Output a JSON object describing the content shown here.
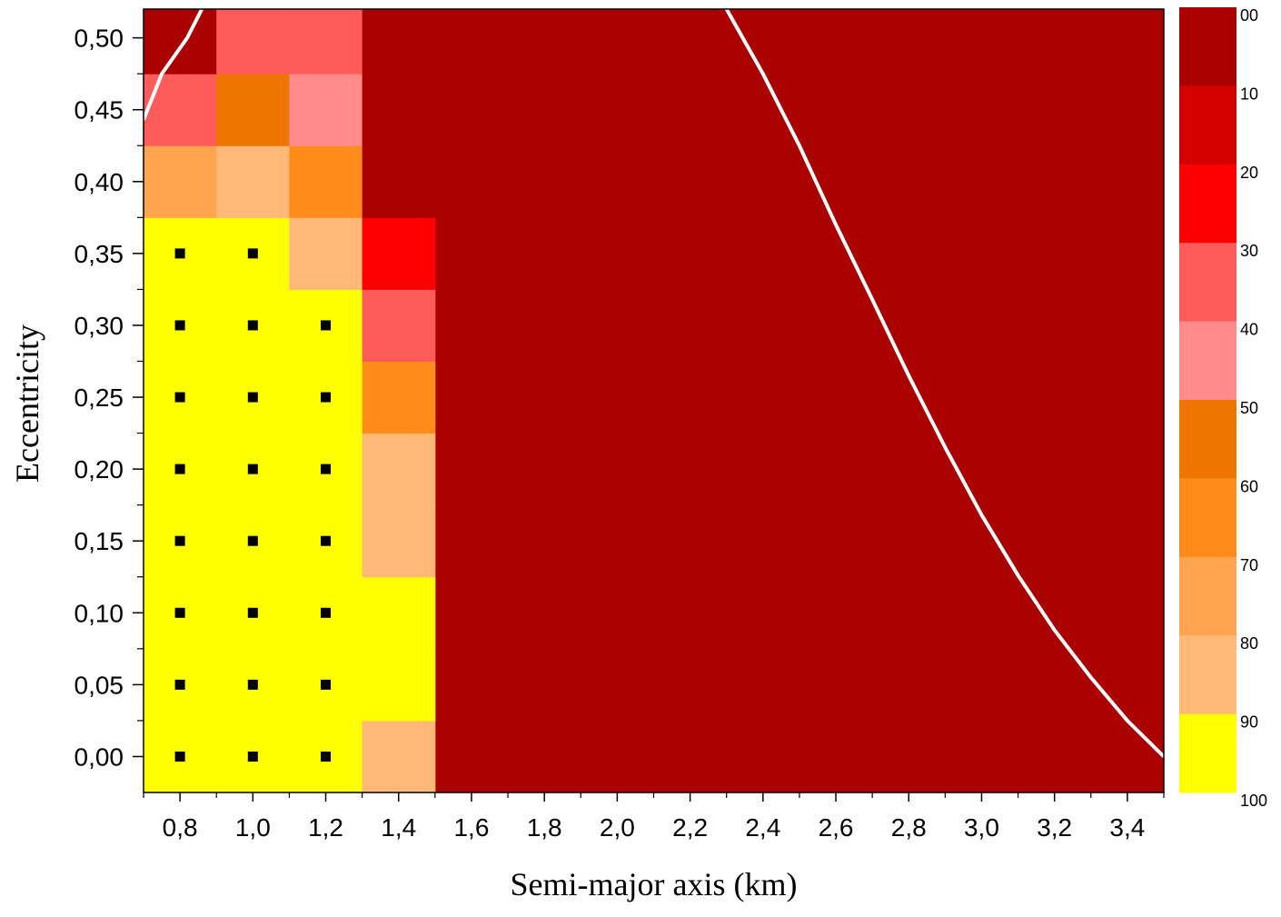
{
  "chart_data": {
    "type": "heatmap",
    "xlabel": "Semi-major axis (km)",
    "ylabel": "Eccentricity",
    "xlim": [
      0.7,
      3.5
    ],
    "ylim": [
      -0.025,
      0.52
    ],
    "x_ticks": [
      0.8,
      1.0,
      1.2,
      1.4,
      1.6,
      1.8,
      2.0,
      2.2,
      2.4,
      2.6,
      2.8,
      3.0,
      3.2,
      3.4
    ],
    "x_tick_labels": [
      "0,8",
      "1,0",
      "1,2",
      "1,4",
      "1,6",
      "1,8",
      "2,0",
      "2,2",
      "2,4",
      "2,6",
      "2,8",
      "3,0",
      "3,2",
      "3,4"
    ],
    "y_ticks": [
      0.0,
      0.05,
      0.1,
      0.15,
      0.2,
      0.25,
      0.3,
      0.35,
      0.4,
      0.45,
      0.5
    ],
    "y_tick_labels": [
      "0,00",
      "0,05",
      "0,10",
      "0,15",
      "0,20",
      "0,25",
      "0,30",
      "0,35",
      "0,40",
      "0,45",
      "0,50"
    ],
    "x_centers": [
      0.8,
      1.0,
      1.2,
      1.4
    ],
    "y_centers": [
      0.0,
      0.05,
      0.1,
      0.15,
      0.2,
      0.25,
      0.3,
      0.35,
      0.4,
      0.45,
      0.5
    ],
    "cell_half_width_x": 0.1,
    "cell_half_height_y": 0.025,
    "values": [
      [
        95,
        95,
        95,
        85
      ],
      [
        95,
        95,
        95,
        95
      ],
      [
        95,
        95,
        95,
        95
      ],
      [
        95,
        95,
        95,
        85
      ],
      [
        95,
        95,
        95,
        85
      ],
      [
        95,
        95,
        95,
        65
      ],
      [
        95,
        95,
        95,
        35
      ],
      [
        95,
        95,
        85,
        25
      ],
      [
        75,
        85,
        65,
        5
      ],
      [
        35,
        55,
        45,
        5
      ],
      [
        5,
        35,
        35,
        5
      ]
    ],
    "background_value": 5,
    "background_x_range": [
      1.5,
      3.5
    ],
    "colorbar": {
      "labels": [
        "00",
        "10",
        "20",
        "30",
        "40",
        "50",
        "60",
        "70",
        "80",
        "90",
        "100"
      ],
      "colors": [
        "#aa0000",
        "#d40000",
        "#ff0000",
        "#ff5b5b",
        "#ff8b8b",
        "#ee7500",
        "#ff8c1a",
        "#ffa54f",
        "#ffb877",
        "#ffff00"
      ]
    },
    "markers": {
      "symbol": "square",
      "color": "#000000",
      "points": [
        [
          0.8,
          0.35
        ],
        [
          1.0,
          0.35
        ],
        [
          0.8,
          0.3
        ],
        [
          1.0,
          0.3
        ],
        [
          1.2,
          0.3
        ],
        [
          0.8,
          0.25
        ],
        [
          1.0,
          0.25
        ],
        [
          1.2,
          0.25
        ],
        [
          0.8,
          0.2
        ],
        [
          1.0,
          0.2
        ],
        [
          1.2,
          0.2
        ],
        [
          0.8,
          0.15
        ],
        [
          1.0,
          0.15
        ],
        [
          1.2,
          0.15
        ],
        [
          0.8,
          0.1
        ],
        [
          1.0,
          0.1
        ],
        [
          1.2,
          0.1
        ],
        [
          0.8,
          0.05
        ],
        [
          1.0,
          0.05
        ],
        [
          1.2,
          0.05
        ],
        [
          0.8,
          0.0
        ],
        [
          1.0,
          0.0
        ],
        [
          1.2,
          0.0
        ]
      ]
    },
    "curves": [
      {
        "color": "#ffffff",
        "points": [
          [
            0.7,
            0.443
          ],
          [
            0.75,
            0.475
          ],
          [
            0.82,
            0.5
          ],
          [
            0.86,
            0.52
          ]
        ]
      },
      {
        "color": "#ffffff",
        "points": [
          [
            2.3,
            0.52
          ],
          [
            2.4,
            0.475
          ],
          [
            2.5,
            0.425
          ],
          [
            2.6,
            0.37
          ],
          [
            2.7,
            0.318
          ],
          [
            2.8,
            0.265
          ],
          [
            2.9,
            0.215
          ],
          [
            3.0,
            0.168
          ],
          [
            3.1,
            0.126
          ],
          [
            3.2,
            0.088
          ],
          [
            3.3,
            0.055
          ],
          [
            3.4,
            0.025
          ],
          [
            3.5,
            0.0
          ]
        ]
      }
    ]
  }
}
